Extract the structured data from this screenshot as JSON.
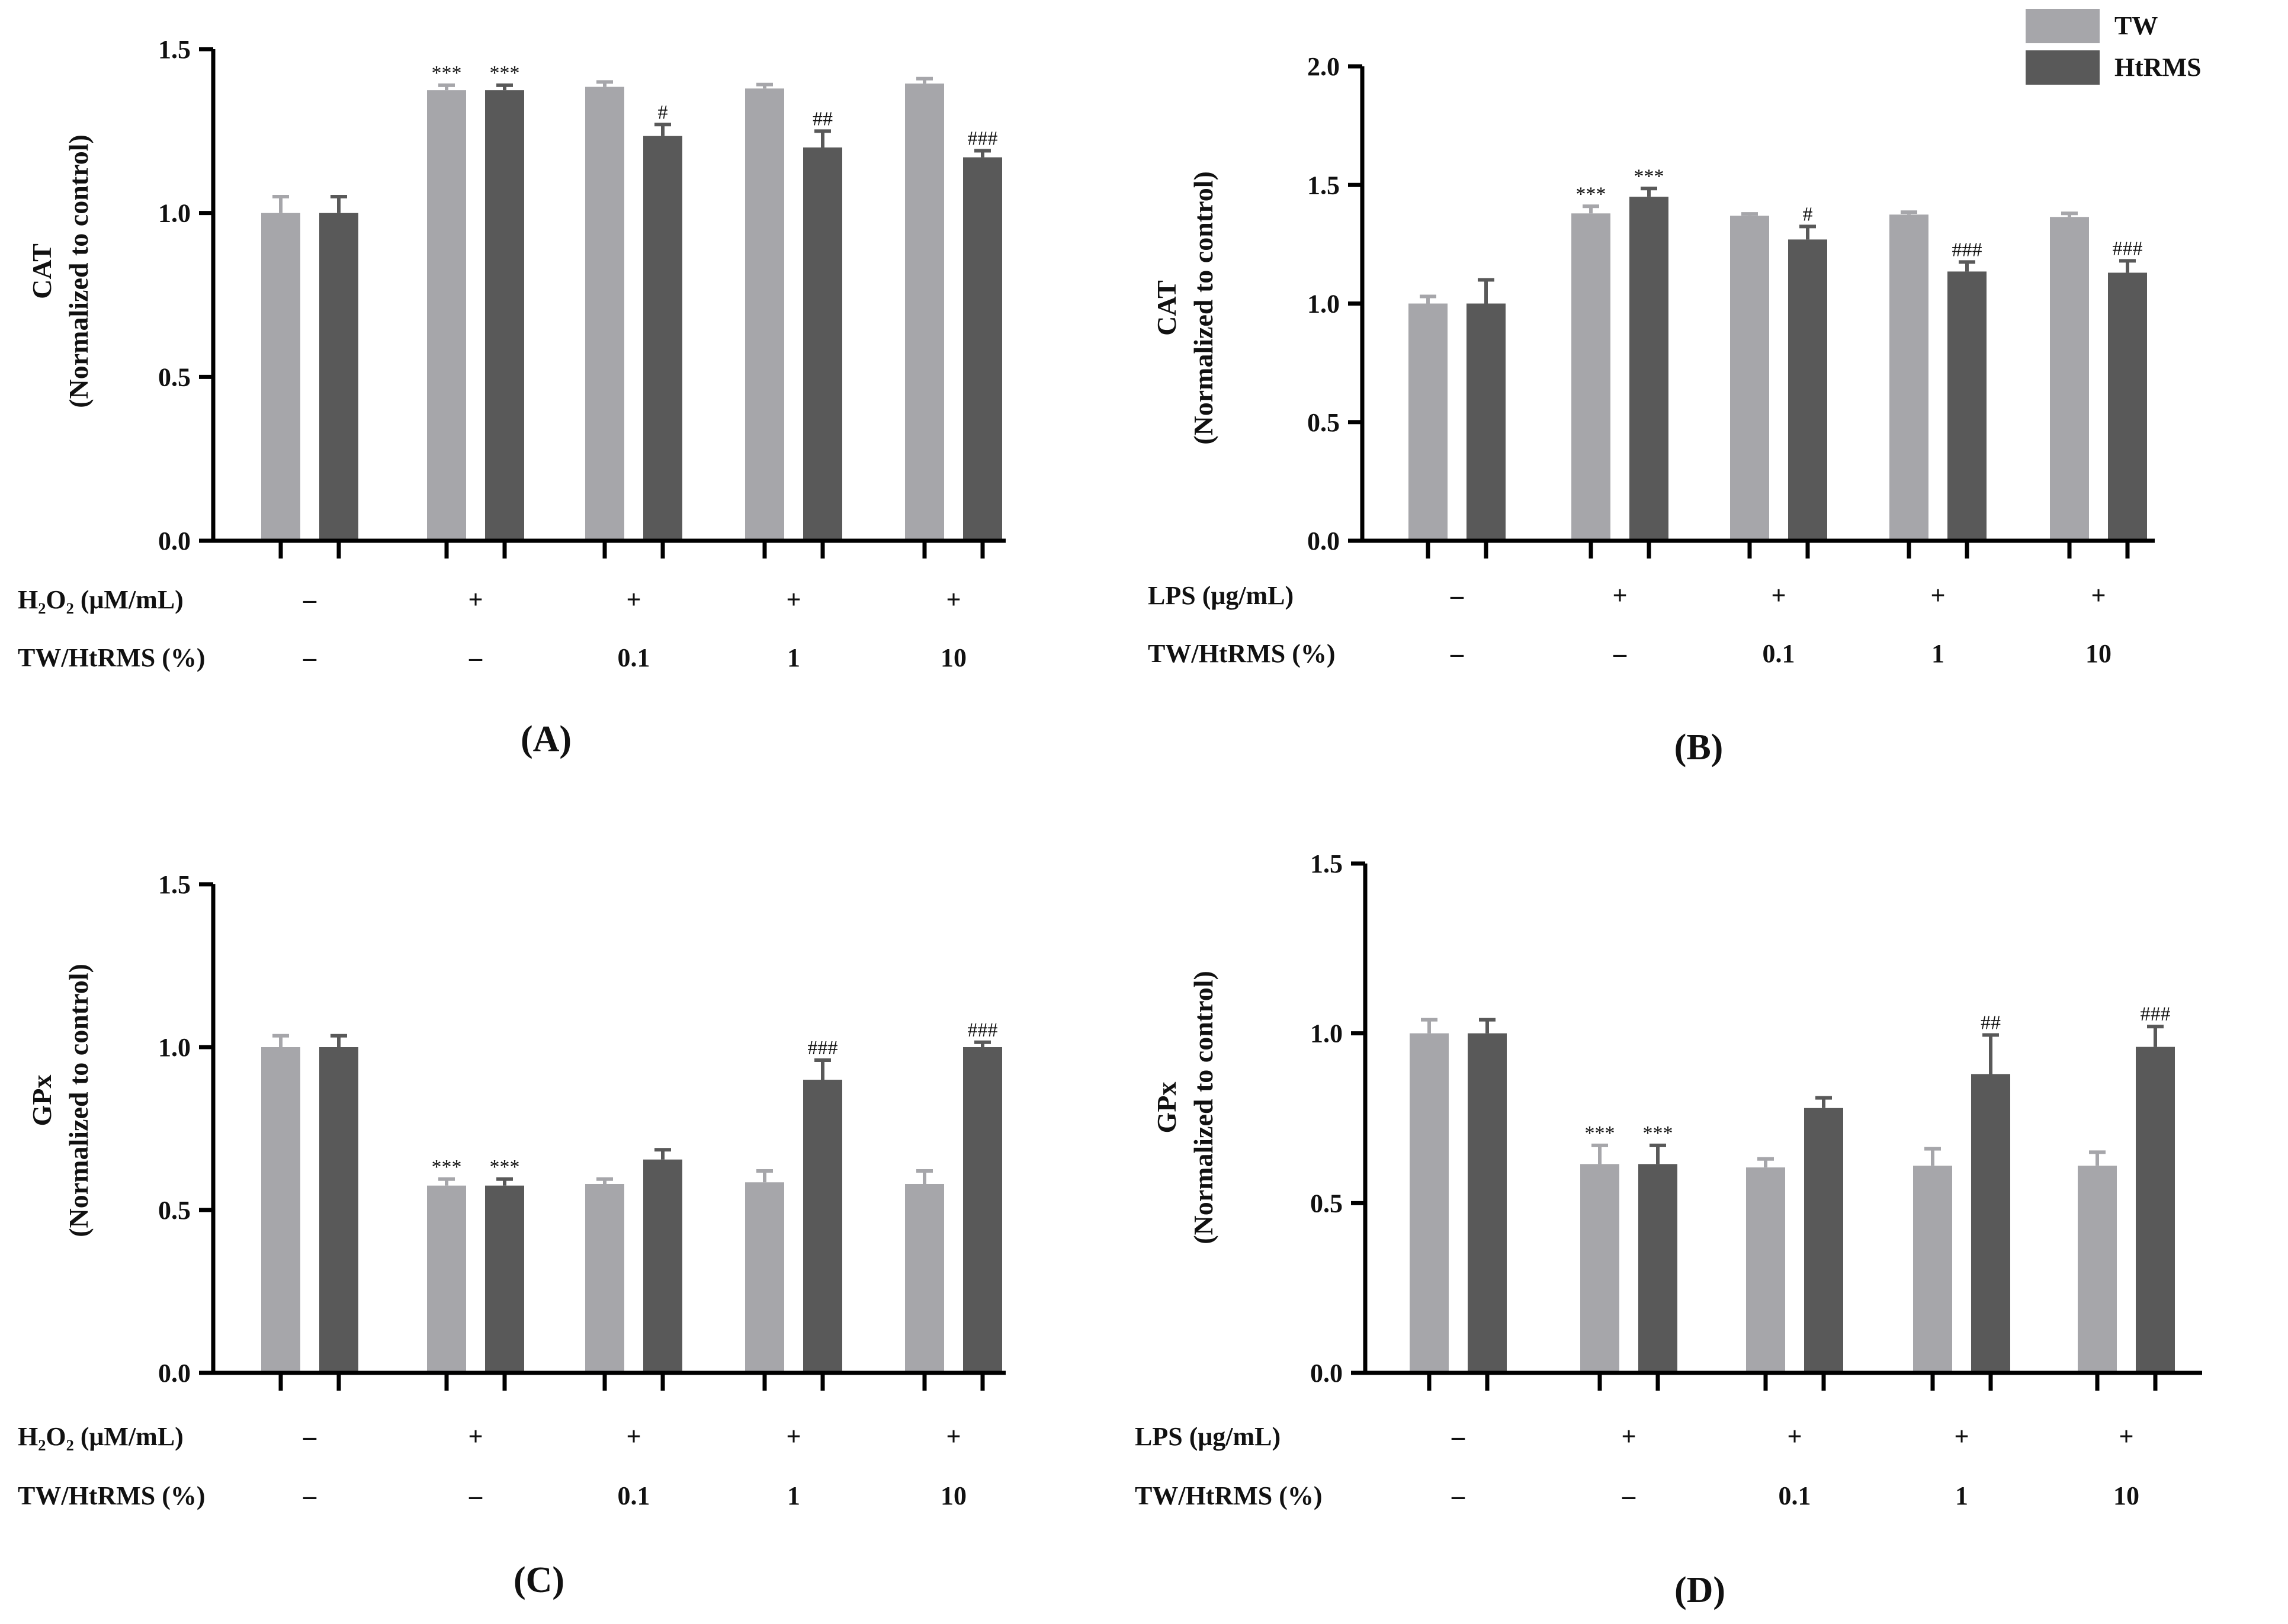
{
  "colors": {
    "tw": "#a6a6aa",
    "htrms": "#595959",
    "axis": "#000000"
  },
  "legend": {
    "items": [
      {
        "label": "TW"
      },
      {
        "label": "HtRMS"
      }
    ]
  },
  "chart_data": [
    {
      "id": "A",
      "type": "bar",
      "panel_label": "(A)",
      "ylabel": "CAT",
      "ylabel_sub": "(Normalized to control)",
      "ylim": [
        0,
        1.5
      ],
      "yticks": [
        "0.0",
        "0.5",
        "1.0",
        "1.5"
      ],
      "treatment_label": "H₂O₂ (μM/mL)",
      "treatment_values": [
        "–",
        "+",
        "+",
        "+",
        "+"
      ],
      "dose_label": "TW/HtRMS (%)",
      "dose_values": [
        "–",
        "–",
        "0.1",
        "1",
        "10"
      ],
      "series": [
        {
          "name": "TW",
          "values": [
            1.0,
            1.375,
            1.385,
            1.38,
            1.395
          ],
          "errors": [
            0.05,
            0.015,
            0.015,
            0.012,
            0.015
          ],
          "annotations": [
            "",
            "***",
            "",
            "",
            ""
          ]
        },
        {
          "name": "HtRMS",
          "values": [
            1.0,
            1.375,
            1.235,
            1.2,
            1.17
          ],
          "errors": [
            0.05,
            0.015,
            0.035,
            0.05,
            0.02
          ],
          "annotations": [
            "",
            "***",
            "#",
            "##",
            "###"
          ]
        }
      ]
    },
    {
      "id": "B",
      "type": "bar",
      "panel_label": "(B)",
      "ylabel": "CAT",
      "ylabel_sub": "(Normalized to control)",
      "ylim": [
        0,
        2.0
      ],
      "yticks": [
        "0.0",
        "0.5",
        "1.0",
        "1.5",
        "2.0"
      ],
      "treatment_label": "LPS (μg/mL)",
      "treatment_values": [
        "–",
        "+",
        "+",
        "+",
        "+"
      ],
      "dose_label": "TW/HtRMS (%)",
      "dose_values": [
        "–",
        "–",
        "0.1",
        "1",
        "10"
      ],
      "series": [
        {
          "name": "TW",
          "values": [
            1.0,
            1.38,
            1.37,
            1.375,
            1.365
          ],
          "errors": [
            0.03,
            0.03,
            0.008,
            0.01,
            0.015
          ],
          "annotations": [
            "",
            "***",
            "",
            "",
            ""
          ]
        },
        {
          "name": "HtRMS",
          "values": [
            1.0,
            1.45,
            1.27,
            1.135,
            1.13
          ],
          "errors": [
            0.1,
            0.035,
            0.055,
            0.04,
            0.05
          ],
          "annotations": [
            "",
            "***",
            "#",
            "###",
            "###"
          ]
        }
      ]
    },
    {
      "id": "C",
      "type": "bar",
      "panel_label": "(C)",
      "ylabel": "GPx",
      "ylabel_sub": "(Normalized to control)",
      "ylim": [
        0,
        1.5
      ],
      "yticks": [
        "0.0",
        "0.5",
        "1.0",
        "1.5"
      ],
      "treatment_label": "H₂O₂ (μM/mL)",
      "treatment_values": [
        "–",
        "+",
        "+",
        "+",
        "+"
      ],
      "dose_label": "TW/HtRMS (%)",
      "dose_values": [
        "–",
        "–",
        "0.1",
        "1",
        "10"
      ],
      "series": [
        {
          "name": "TW",
          "values": [
            1.0,
            0.575,
            0.58,
            0.585,
            0.58
          ],
          "errors": [
            0.035,
            0.02,
            0.015,
            0.035,
            0.04
          ],
          "annotations": [
            "",
            "***",
            "",
            "",
            ""
          ]
        },
        {
          "name": "HtRMS",
          "values": [
            1.0,
            0.575,
            0.655,
            0.9,
            1.0
          ],
          "errors": [
            0.035,
            0.02,
            0.03,
            0.06,
            0.015
          ],
          "annotations": [
            "",
            "***",
            "",
            "###",
            "###"
          ]
        }
      ]
    },
    {
      "id": "D",
      "type": "bar",
      "panel_label": "(D)",
      "ylabel": "GPx",
      "ylabel_sub": "(Normalized to control)",
      "ylim": [
        0,
        1.5
      ],
      "yticks": [
        "0.0",
        "0.5",
        "1.0",
        "1.5"
      ],
      "treatment_label": "LPS (μg/mL)",
      "treatment_values": [
        "–",
        "+",
        "+",
        "+",
        "+"
      ],
      "dose_label": "TW/HtRMS (%)",
      "dose_values": [
        "–",
        "–",
        "0.1",
        "1",
        "10"
      ],
      "series": [
        {
          "name": "TW",
          "values": [
            1.0,
            0.615,
            0.605,
            0.61,
            0.61
          ],
          "errors": [
            0.04,
            0.055,
            0.025,
            0.05,
            0.04
          ],
          "annotations": [
            "",
            "***",
            "",
            "",
            ""
          ]
        },
        {
          "name": "HtRMS",
          "values": [
            1.0,
            0.615,
            0.78,
            0.88,
            0.96
          ],
          "errors": [
            0.04,
            0.055,
            0.03,
            0.115,
            0.06
          ],
          "annotations": [
            "",
            "***",
            "",
            "##",
            "###"
          ]
        }
      ]
    }
  ]
}
